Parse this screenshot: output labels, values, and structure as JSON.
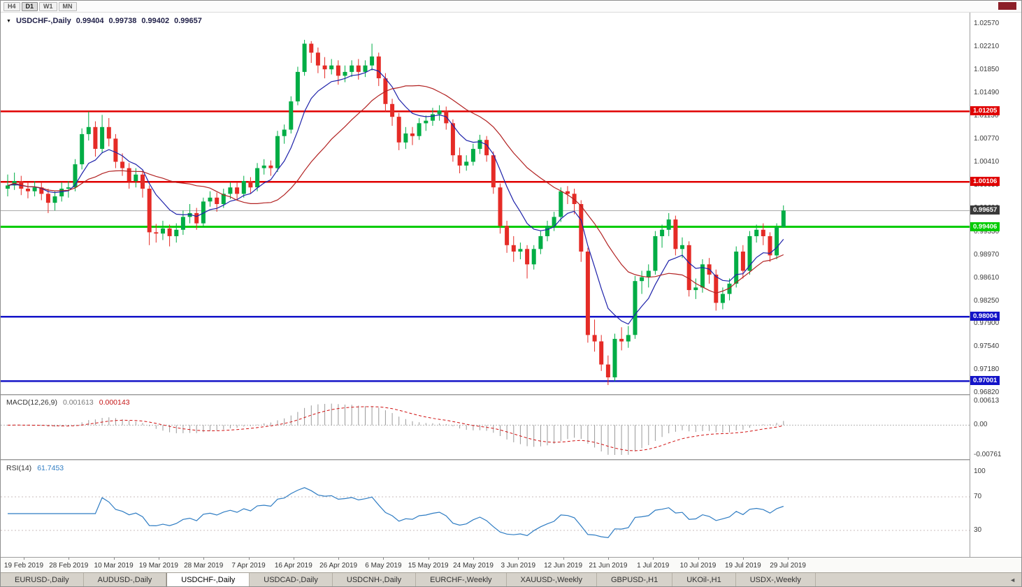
{
  "toolbar": {
    "timeframes": [
      {
        "label": "H4",
        "active": false
      },
      {
        "label": "D1",
        "active": true
      },
      {
        "label": "W1",
        "active": false
      },
      {
        "label": "MN",
        "active": false
      }
    ]
  },
  "chart_header": {
    "symbol_label": "USDCHF-,Daily",
    "open": "0.99404",
    "high": "0.99738",
    "low": "0.99402",
    "close": "0.99657"
  },
  "chart_data": {
    "type": "candlestick",
    "symbol": "USDCHF",
    "timeframe": "Daily",
    "style": {
      "bull": "#00ad45",
      "bear": "#e52b26"
    },
    "price_axis": {
      "max": 1.0257,
      "min": 0.9682,
      "ticks": [
        "1.02570",
        "1.02210",
        "1.01850",
        "1.01490",
        "1.01130",
        "1.00770",
        "1.00410",
        "1.00050",
        "0.99690",
        "0.99330",
        "0.98970",
        "0.98610",
        "0.98250",
        "0.97900",
        "0.97540",
        "0.97180",
        "0.96820"
      ]
    },
    "current_price": {
      "value": "0.99657",
      "price": 0.99657,
      "bg": "#3a3a3a",
      "line_color": "#ababab"
    },
    "hlines": [
      {
        "price": 1.01205,
        "label": "1.01205",
        "color": "#e00000",
        "width": 2.5
      },
      {
        "price": 1.00106,
        "label": "1.00106",
        "color": "#e00000",
        "width": 2.5
      },
      {
        "price": 0.99406,
        "label": "0.99406",
        "color": "#00cc00",
        "width": 3
      },
      {
        "price": 0.98004,
        "label": "0.98004",
        "color": "#1414c8",
        "width": 2.5
      },
      {
        "price": 0.97001,
        "label": "0.97001",
        "color": "#1414c8",
        "width": 2.5
      }
    ],
    "ma_fast": {
      "period": 8,
      "type": "ema",
      "color": "#1e22aa"
    },
    "ma_slow": {
      "period": 20,
      "type": "sma",
      "color": "#b22222"
    },
    "macd": {
      "label": "MACD(12,26,9)",
      "value_main": "0.001613",
      "value_signal": "0.000143",
      "fast": 12,
      "slow": 26,
      "signal": 9,
      "axis": [
        "0.00613",
        "0.00",
        "-0.00761"
      ],
      "axis_values": [
        0.00613,
        0,
        -0.00761
      ],
      "hist_color": "#9a9a9a",
      "signal_color": "#d01010"
    },
    "rsi": {
      "label": "RSI(14)",
      "value": "61.7453",
      "period": 14,
      "levels": [
        70,
        30
      ],
      "axis": [
        "100",
        "70",
        "30"
      ],
      "axis_values": [
        100,
        70,
        30
      ],
      "color": "#2e7cc3"
    },
    "x_axis": [
      "19 Feb 2019",
      "28 Feb 2019",
      "10 Mar 2019",
      "19 Mar 2019",
      "28 Mar 2019",
      "7 Apr 2019",
      "16 Apr 2019",
      "26 Apr 2019",
      "6 May 2019",
      "15 May 2019",
      "24 May 2019",
      "3 Jun 2019",
      "12 Jun 2019",
      "21 Jun 2019",
      "1 Jul 2019",
      "10 Jul 2019",
      "19 Jul 2019",
      "29 Jul 2019"
    ],
    "candles": [
      [
        1.0,
        1.0022,
        0.9988,
        1.0005
      ],
      [
        1.0005,
        1.0025,
        0.9998,
        1.0012
      ],
      [
        1.0012,
        1.002,
        0.999,
        1.0
      ],
      [
        1.0,
        1.001,
        0.9985,
        0.9996
      ],
      [
        0.9996,
        1.0012,
        0.9988,
        1.0002
      ],
      [
        1.0002,
        1.001,
        0.9982,
        0.9992
      ],
      [
        0.9992,
        1.0,
        0.9962,
        0.9978
      ],
      [
        0.9978,
        0.9996,
        0.9966,
        0.9988
      ],
      [
        0.9988,
        1.001,
        0.998,
        1.0
      ],
      [
        1.0,
        1.0012,
        0.9986,
        1.0002
      ],
      [
        1.0002,
        1.0046,
        0.9996,
        1.0038
      ],
      [
        1.0038,
        1.0094,
        1.003,
        1.0085
      ],
      [
        1.0085,
        1.012,
        1.0075,
        1.0096
      ],
      [
        1.0096,
        1.0105,
        1.005,
        1.0062
      ],
      [
        1.0062,
        1.0115,
        1.0055,
        1.0096
      ],
      [
        1.0096,
        1.011,
        1.0066,
        1.0078
      ],
      [
        1.0078,
        1.0085,
        1.0032,
        1.0042
      ],
      [
        1.0042,
        1.0055,
        1.002,
        1.0032
      ],
      [
        1.0032,
        1.004,
        1.0,
        1.0012
      ],
      [
        1.0012,
        1.0032,
        1.0002,
        1.0022
      ],
      [
        1.0022,
        1.0028,
        0.9986,
        1.0
      ],
      [
        1.0,
        1.0005,
        0.9912,
        0.9932
      ],
      [
        0.9932,
        0.9945,
        0.9916,
        0.993
      ],
      [
        0.993,
        0.995,
        0.992,
        0.9938
      ],
      [
        0.9938,
        0.9944,
        0.991,
        0.9926
      ],
      [
        0.9926,
        0.9946,
        0.9916,
        0.9936
      ],
      [
        0.9936,
        0.9966,
        0.9928,
        0.9956
      ],
      [
        0.9956,
        0.9976,
        0.9946,
        0.9962
      ],
      [
        0.9962,
        0.997,
        0.9936,
        0.9946
      ],
      [
        0.9946,
        0.9986,
        0.994,
        0.998
      ],
      [
        0.998,
        0.9996,
        0.9972,
        0.9986
      ],
      [
        0.9986,
        0.9994,
        0.9964,
        0.9976
      ],
      [
        0.9976,
        1.0,
        0.997,
        0.9992
      ],
      [
        0.9992,
        1.001,
        0.9984,
        1.0002
      ],
      [
        1.0002,
        1.001,
        0.9982,
        0.9992
      ],
      [
        0.9992,
        1.002,
        0.9986,
        1.0012
      ],
      [
        1.0012,
        1.0018,
        0.9992,
        1.0002
      ],
      [
        1.0002,
        1.004,
        0.9996,
        1.0032
      ],
      [
        1.0032,
        1.0046,
        1.0022,
        1.0036
      ],
      [
        1.0036,
        1.0044,
        1.002,
        1.0032
      ],
      [
        1.0032,
        1.009,
        1.0026,
        1.0082
      ],
      [
        1.0082,
        1.01,
        1.007,
        1.0092
      ],
      [
        1.0092,
        1.0144,
        1.0086,
        1.0136
      ],
      [
        1.0136,
        1.019,
        1.013,
        1.0182
      ],
      [
        1.0182,
        1.0232,
        1.0176,
        1.0226
      ],
      [
        1.0226,
        1.023,
        1.0196,
        1.0212
      ],
      [
        1.0212,
        1.022,
        1.018,
        1.0192
      ],
      [
        1.0192,
        1.0205,
        1.0172,
        1.0186
      ],
      [
        1.0186,
        1.0202,
        1.0178,
        1.0192
      ],
      [
        1.0192,
        1.02,
        1.0162,
        1.0176
      ],
      [
        1.0176,
        1.0192,
        1.0166,
        1.0182
      ],
      [
        1.0182,
        1.02,
        1.0174,
        1.0192
      ],
      [
        1.0192,
        1.0202,
        1.017,
        1.0182
      ],
      [
        1.0182,
        1.02,
        1.0174,
        1.0192
      ],
      [
        1.0192,
        1.0226,
        1.0184,
        1.0206
      ],
      [
        1.0206,
        1.0212,
        1.016,
        1.0172
      ],
      [
        1.0172,
        1.018,
        1.012,
        1.0132
      ],
      [
        1.0132,
        1.014,
        1.0098,
        1.0112
      ],
      [
        1.0112,
        1.0118,
        1.006,
        1.0072
      ],
      [
        1.0072,
        1.0096,
        1.0062,
        1.0086
      ],
      [
        1.0086,
        1.0096,
        1.0068,
        1.0082
      ],
      [
        1.0082,
        1.011,
        1.0076,
        1.0102
      ],
      [
        1.0102,
        1.0114,
        1.009,
        1.0106
      ],
      [
        1.0106,
        1.0126,
        1.0098,
        1.0116
      ],
      [
        1.0116,
        1.013,
        1.0106,
        1.0122
      ],
      [
        1.0122,
        1.0128,
        1.0092,
        1.0102
      ],
      [
        1.0102,
        1.0108,
        1.0042,
        1.0052
      ],
      [
        1.0052,
        1.0064,
        1.0024,
        1.0036
      ],
      [
        1.0036,
        1.0052,
        1.0028,
        1.0042
      ],
      [
        1.0042,
        1.007,
        1.0036,
        1.0062
      ],
      [
        1.0062,
        1.0084,
        1.0054,
        1.0076
      ],
      [
        1.0076,
        1.0082,
        1.0042,
        1.0052
      ],
      [
        1.0052,
        1.0058,
        0.9992,
        1.0002
      ],
      [
        1.0002,
        1.0008,
        0.993,
        0.9942
      ],
      [
        0.9942,
        0.995,
        0.99,
        0.9912
      ],
      [
        0.9912,
        0.9926,
        0.9886,
        0.9902
      ],
      [
        0.9902,
        0.9916,
        0.989,
        0.9906
      ],
      [
        0.9906,
        0.9912,
        0.986,
        0.9882
      ],
      [
        0.9882,
        0.9912,
        0.9874,
        0.9906
      ],
      [
        0.9906,
        0.9934,
        0.9898,
        0.9926
      ],
      [
        0.9926,
        0.995,
        0.9918,
        0.9942
      ],
      [
        0.9942,
        0.9964,
        0.9934,
        0.9956
      ],
      [
        0.9956,
        1.0002,
        0.9948,
        0.9996
      ],
      [
        0.9996,
        1.0004,
        0.9976,
        0.9992
      ],
      [
        0.9992,
        1.0,
        0.996,
        0.9976
      ],
      [
        0.9976,
        0.9982,
        0.9886,
        0.9902
      ],
      [
        0.9902,
        0.9908,
        0.976,
        0.9772
      ],
      [
        0.9772,
        0.9796,
        0.9746,
        0.9762
      ],
      [
        0.9762,
        0.9772,
        0.9716,
        0.9726
      ],
      [
        0.9726,
        0.974,
        0.9694,
        0.9706
      ],
      [
        0.9706,
        0.9774,
        0.97,
        0.9766
      ],
      [
        0.9766,
        0.9784,
        0.9748,
        0.9762
      ],
      [
        0.9762,
        0.9786,
        0.9752,
        0.9772
      ],
      [
        0.9772,
        0.9864,
        0.9766,
        0.9856
      ],
      [
        0.9856,
        0.9872,
        0.9836,
        0.9862
      ],
      [
        0.9862,
        0.9882,
        0.9846,
        0.9872
      ],
      [
        0.9872,
        0.9934,
        0.9866,
        0.9926
      ],
      [
        0.9926,
        0.9944,
        0.9908,
        0.9936
      ],
      [
        0.9936,
        0.9962,
        0.9926,
        0.9952
      ],
      [
        0.9952,
        0.9958,
        0.9896,
        0.9906
      ],
      [
        0.9906,
        0.9924,
        0.9892,
        0.9912
      ],
      [
        0.9912,
        0.9918,
        0.9832,
        0.9842
      ],
      [
        0.9842,
        0.986,
        0.9828,
        0.9846
      ],
      [
        0.9846,
        0.989,
        0.9838,
        0.9882
      ],
      [
        0.9882,
        0.9892,
        0.9852,
        0.9866
      ],
      [
        0.9866,
        0.9874,
        0.981,
        0.9822
      ],
      [
        0.9822,
        0.9846,
        0.9812,
        0.9836
      ],
      [
        0.9836,
        0.986,
        0.9826,
        0.9852
      ],
      [
        0.9852,
        0.991,
        0.9846,
        0.9902
      ],
      [
        0.9902,
        0.9912,
        0.986,
        0.9872
      ],
      [
        0.9872,
        0.9934,
        0.9866,
        0.9926
      ],
      [
        0.9926,
        0.9944,
        0.9916,
        0.9936
      ],
      [
        0.9936,
        0.9946,
        0.9912,
        0.9926
      ],
      [
        0.9926,
        0.9932,
        0.9886,
        0.9896
      ],
      [
        0.9896,
        0.9946,
        0.989,
        0.994
      ],
      [
        0.994,
        0.9974,
        0.994,
        0.9966
      ]
    ]
  },
  "tabs": {
    "scroll_left": "◄",
    "items": [
      {
        "label": "EURUSD-,Daily",
        "active": false
      },
      {
        "label": "AUDUSD-,Daily",
        "active": false
      },
      {
        "label": "USDCHF-,Daily",
        "active": true
      },
      {
        "label": "USDCAD-,Daily",
        "active": false
      },
      {
        "label": "USDCNH-,Daily",
        "active": false
      },
      {
        "label": "EURCHF-,Weekly",
        "active": false
      },
      {
        "label": "XAUUSD-,Weekly",
        "active": false
      },
      {
        "label": "GBPUSD-,H1",
        "active": false
      },
      {
        "label": "UKOil-,H1",
        "active": false
      },
      {
        "label": "USDX-,Weekly",
        "active": false
      }
    ]
  }
}
